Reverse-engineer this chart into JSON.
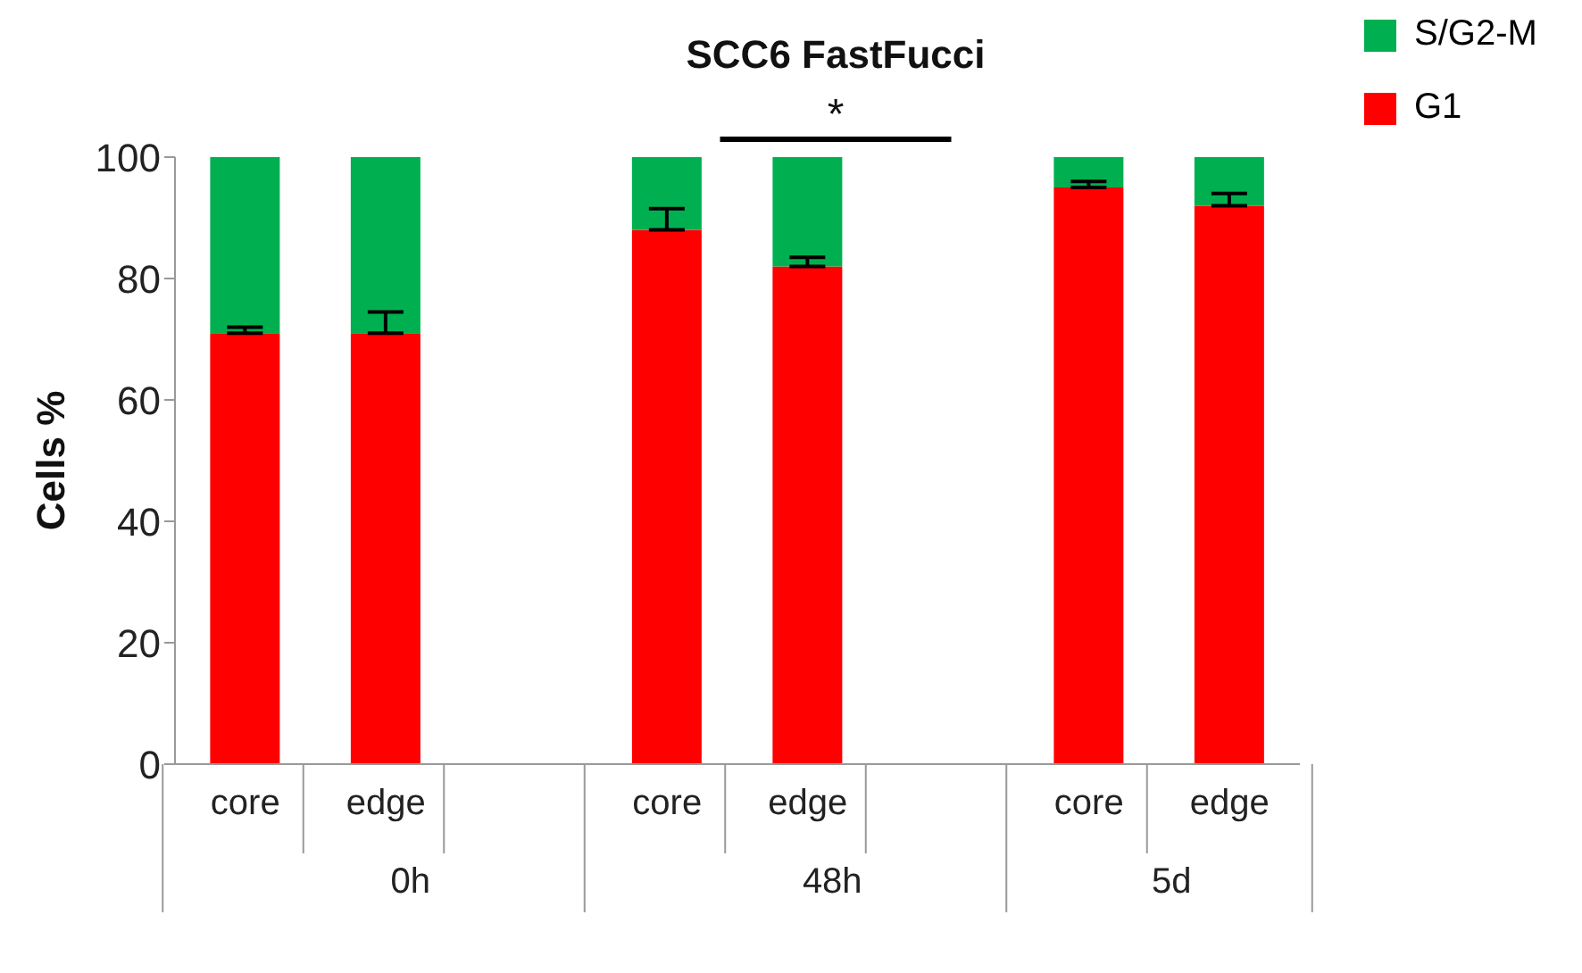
{
  "chart_data": {
    "type": "bar",
    "title": "SCC6 FastFucci",
    "ylabel": "Cells %",
    "categories": [
      "core",
      "edge",
      null,
      "core",
      "edge",
      null,
      "core",
      "edge"
    ],
    "series": [
      {
        "name": "G1",
        "color": "#ff0000",
        "values": [
          71,
          71,
          null,
          88,
          82,
          null,
          95,
          92
        ],
        "errors": [
          [
            71,
            72
          ],
          [
            71,
            74.5
          ],
          null,
          [
            88,
            91.5
          ],
          [
            82,
            83.5
          ],
          null,
          [
            95,
            96
          ],
          [
            92,
            94
          ]
        ]
      },
      {
        "name": "S/G2-M",
        "color": "#00b050",
        "values": [
          29,
          29,
          null,
          12,
          18,
          null,
          5,
          8
        ]
      }
    ],
    "stacked": true,
    "ylim": [
      0,
      100
    ],
    "yticks": [
      0,
      20,
      40,
      60,
      80,
      100
    ],
    "grid": false,
    "legend": "top right",
    "annotations": [
      "*",
      "0h",
      "48h",
      "5d"
    ]
  }
}
